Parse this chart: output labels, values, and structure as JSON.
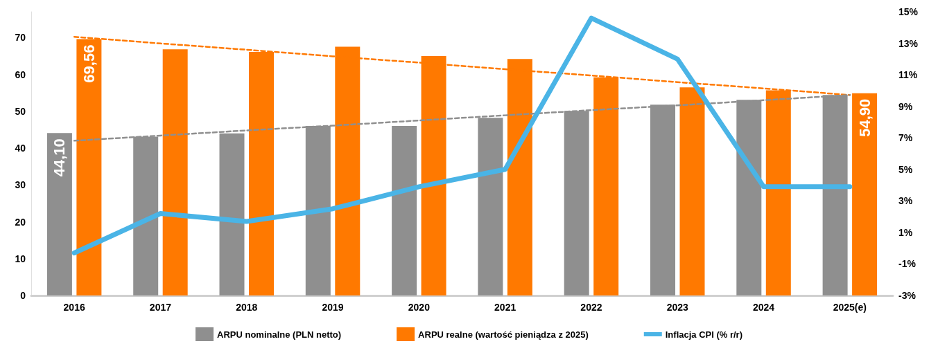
{
  "chart_data": {
    "type": "bar",
    "categories": [
      "2016",
      "2017",
      "2018",
      "2019",
      "2020",
      "2021",
      "2022",
      "2023",
      "2024",
      "2025(e)"
    ],
    "series": [
      {
        "name": "ARPU nominalne (PLN netto)",
        "color": "#8f8f8f",
        "values": [
          44.1,
          43.1,
          44.0,
          46.0,
          46.0,
          48.2,
          50.1,
          51.8,
          53.1,
          54.4
        ],
        "value_labels": [
          "44,10",
          null,
          null,
          null,
          null,
          null,
          null,
          null,
          null,
          null
        ]
      },
      {
        "name": "ARPU realne (wartość pieniądza z 2025)",
        "color": "#ff7900",
        "values": [
          69.56,
          66.8,
          66.1,
          67.5,
          65.0,
          64.2,
          59.2,
          56.5,
          55.7,
          54.9
        ],
        "value_labels": [
          "69,56",
          null,
          null,
          null,
          null,
          null,
          null,
          null,
          null,
          "54,90"
        ]
      },
      {
        "name": "Inflacja CPI (% r/r)",
        "type": "line",
        "axis": "y2",
        "color": "#4ab4e6",
        "marker": "none",
        "line_style": "solid",
        "values": [
          -0.3,
          2.2,
          1.7,
          2.5,
          3.9,
          5.0,
          14.6,
          12.0,
          3.9,
          3.9
        ]
      },
      {
        "type": "line",
        "color": "#ff7900",
        "marker": "none",
        "line_style": "dashed",
        "values": [
          70.2,
          68.4,
          66.7,
          64.9,
          63.2,
          61.4,
          59.7,
          57.9,
          56.2,
          54.4
        ]
      },
      {
        "type": "line",
        "color": "#8f8f8f",
        "marker": "none",
        "line_style": "dashed",
        "values": [
          42.0,
          43.4,
          44.8,
          46.1,
          47.5,
          48.9,
          50.3,
          51.6,
          53.0,
          54.4
        ]
      }
    ],
    "ylim": [
      0,
      77
    ],
    "yticks": [
      0,
      10,
      20,
      30,
      40,
      50,
      60,
      70
    ],
    "y2lim": [
      -3,
      15
    ],
    "y2ticks": [
      {
        "value": -3,
        "label": "-3%"
      },
      {
        "value": -1,
        "label": "-1%"
      },
      {
        "value": 1,
        "label": "1%"
      },
      {
        "value": 3,
        "label": "3%"
      },
      {
        "value": 5,
        "label": "5%"
      },
      {
        "value": 7,
        "label": "7%"
      },
      {
        "value": 9,
        "label": "9%"
      },
      {
        "value": 11,
        "label": "11%"
      },
      {
        "value": 13,
        "label": "13%"
      },
      {
        "value": 15,
        "label": "15%"
      }
    ],
    "grid": false,
    "legend": "bottom"
  }
}
